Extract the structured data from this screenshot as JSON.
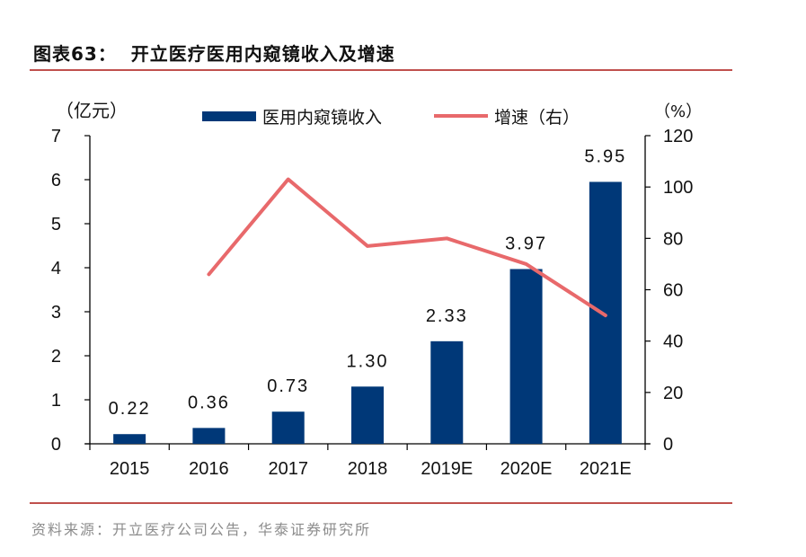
{
  "figure": {
    "label": "图表63：",
    "title": "开立医疗医用内窥镜收入及增速",
    "source": "资料来源：开立医疗公司公告，华泰证券研究所"
  },
  "colors": {
    "bar": "#003878",
    "line": "#e8696b",
    "rule": "#c0504d"
  },
  "chart_data": {
    "type": "bar",
    "title": "开立医疗医用内窥镜收入及增速",
    "categories": [
      "2015",
      "2016",
      "2017",
      "2018",
      "2019E",
      "2020E",
      "2021E"
    ],
    "series": [
      {
        "name": "医用内窥镜收入",
        "type": "bar",
        "axis": "left",
        "values": [
          0.22,
          0.36,
          0.73,
          1.3,
          2.33,
          3.97,
          5.95
        ],
        "labels": [
          "0.22",
          "0.36",
          "0.73",
          "1.30",
          "2.33",
          "3.97",
          "5.95"
        ]
      },
      {
        "name": "增速（右）",
        "type": "line",
        "axis": "right",
        "values": [
          null,
          66,
          103,
          77,
          80,
          70,
          50
        ]
      }
    ],
    "left_axis": {
      "label": "（亿元）",
      "ylim": [
        0,
        7
      ],
      "ticks": [
        "0",
        "1",
        "2",
        "3",
        "4",
        "5",
        "6",
        "7"
      ]
    },
    "right_axis": {
      "label": "（%）",
      "ylim": [
        0,
        120
      ],
      "ticks": [
        "0",
        "20",
        "40",
        "60",
        "80",
        "100",
        "120"
      ]
    },
    "legend": {
      "placement": "top-center",
      "entries": [
        "医用内窥镜收入",
        "增速（右）"
      ]
    },
    "grid": false
  }
}
